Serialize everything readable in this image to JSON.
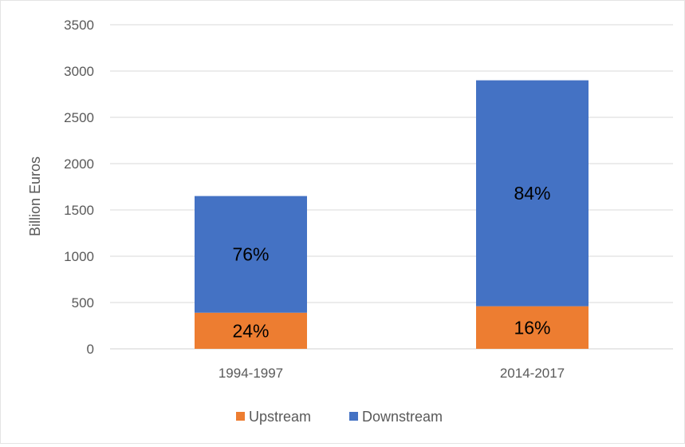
{
  "chart_data": {
    "type": "bar",
    "stacked": true,
    "categories": [
      "1994-1997",
      "2014-2017"
    ],
    "series": [
      {
        "name": "Upstream",
        "values": [
          390,
          460
        ],
        "labels": [
          "24%",
          "16%"
        ],
        "color": "#ED7D31"
      },
      {
        "name": "Downstream",
        "values": [
          1260,
          2440
        ],
        "labels": [
          "76%",
          "84%"
        ],
        "color": "#4472C4"
      }
    ],
    "ylabel": "Billion Euros",
    "xlabel": "",
    "ylim": [
      0,
      3500
    ],
    "yticks": [
      0,
      500,
      1000,
      1500,
      2000,
      2500,
      3000,
      3500
    ],
    "grid": true,
    "legend_position": "bottom"
  }
}
